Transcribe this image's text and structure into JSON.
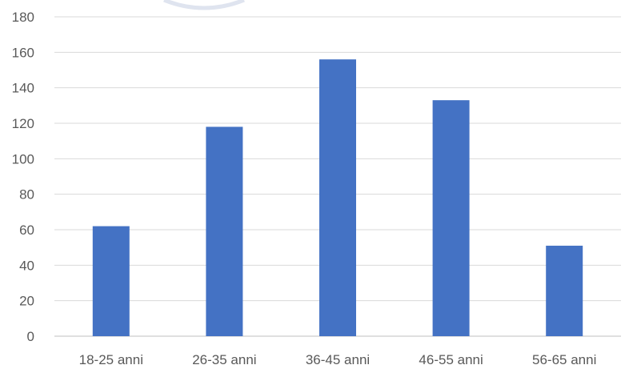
{
  "chart_data": {
    "type": "bar",
    "categories": [
      "18-25 anni",
      "26-35 anni",
      "36-45 anni",
      "46-55 anni",
      "56-65 anni"
    ],
    "values": [
      62,
      118,
      156,
      133,
      51
    ],
    "y_ticks": [
      "0",
      "20",
      "40",
      "60",
      "80",
      "100",
      "120",
      "140",
      "160",
      "180"
    ],
    "ylim": [
      0,
      180
    ],
    "grid": true,
    "legend": "none",
    "bar_color": "#4472C4",
    "grid_color": "#D9D9D9",
    "axis_color": "#BFBFBF",
    "text_color": "#595959"
  }
}
